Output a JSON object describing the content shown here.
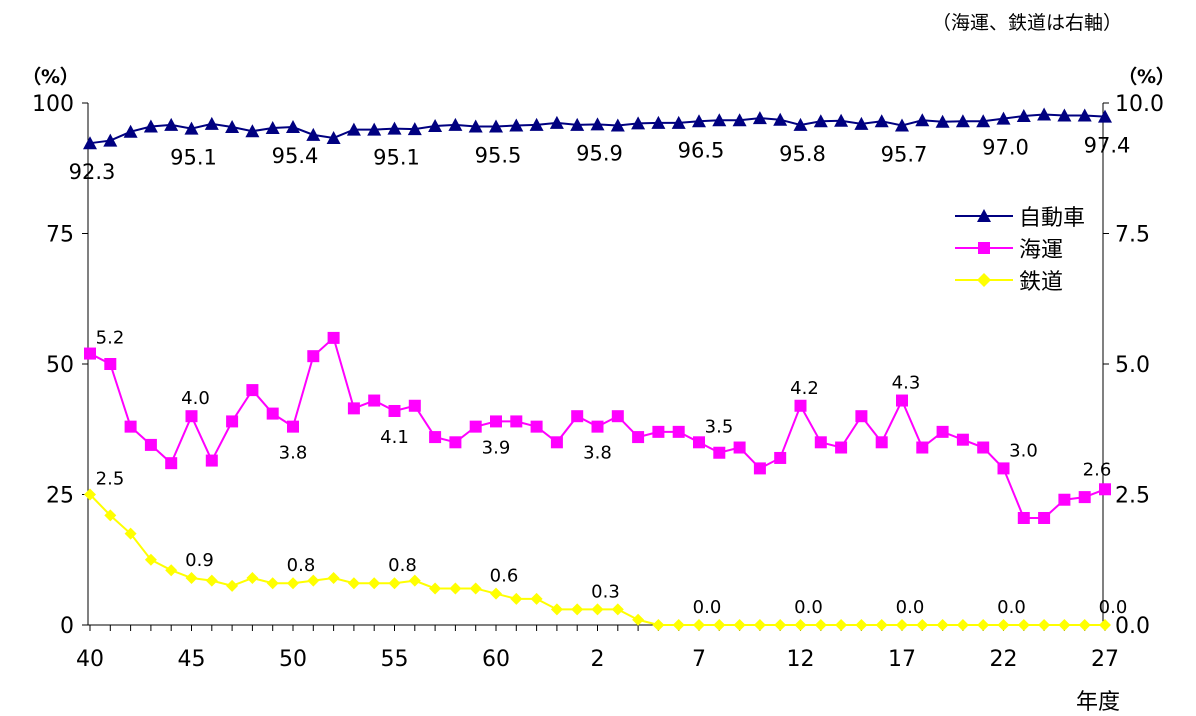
{
  "chart_data": {
    "type": "line",
    "note": "（海運、鉄道は右軸）",
    "ylabel_left": "（%）",
    "ylabel_right": "（%）",
    "xlabel": "年度",
    "ylim_left": [
      0,
      100
    ],
    "ylim_right": [
      0,
      10
    ],
    "left_ticks": [
      "0",
      "25",
      "50",
      "75",
      "100"
    ],
    "right_ticks": [
      "0.0",
      "2.5",
      "5.0",
      "7.5",
      "10.0"
    ],
    "x_tick_labels": [
      "40",
      "45",
      "50",
      "55",
      "60",
      "2",
      "7",
      "12",
      "17",
      "22",
      "27"
    ],
    "x": [
      "40",
      "41",
      "42",
      "43",
      "44",
      "45",
      "46",
      "47",
      "48",
      "49",
      "50",
      "51",
      "52",
      "53",
      "54",
      "55",
      "56",
      "57",
      "58",
      "59",
      "60",
      "61",
      "62",
      "63",
      "元",
      "2",
      "3",
      "4",
      "5",
      "6",
      "7",
      "8",
      "9",
      "10",
      "11",
      "12",
      "13",
      "14",
      "15",
      "16",
      "17",
      "18",
      "19",
      "20",
      "21",
      "22",
      "23",
      "24",
      "25",
      "26",
      "27"
    ],
    "grid": false,
    "legend_position": "right",
    "series": [
      {
        "name": "自動車",
        "axis": "left",
        "color": "#000080",
        "marker": "triangle",
        "values": [
          92.3,
          92.8,
          94.5,
          95.5,
          95.8,
          95.1,
          96.0,
          95.4,
          94.6,
          95.2,
          95.4,
          93.9,
          93.3,
          94.9,
          94.9,
          95.1,
          95.0,
          95.6,
          95.8,
          95.5,
          95.5,
          95.7,
          95.8,
          96.2,
          95.8,
          95.9,
          95.7,
          96.1,
          96.2,
          96.2,
          96.5,
          96.7,
          96.7,
          97.1,
          96.8,
          95.8,
          96.5,
          96.6,
          96.0,
          96.5,
          95.7,
          96.7,
          96.4,
          96.5,
          96.5,
          97.0,
          97.5,
          97.8,
          97.6,
          97.6,
          97.4
        ],
        "labels": {
          "0": "92.3",
          "5": "95.1",
          "10": "95.4",
          "15": "95.1",
          "20": "95.5",
          "25": "95.9",
          "30": "96.5",
          "35": "95.8",
          "40": "95.7",
          "45": "97.0",
          "50": "97.4"
        }
      },
      {
        "name": "海運",
        "axis": "right",
        "color": "#FF00FF",
        "marker": "square",
        "values": [
          5.2,
          5.0,
          3.8,
          3.45,
          3.1,
          4.0,
          3.15,
          3.9,
          4.5,
          4.05,
          3.8,
          5.15,
          5.5,
          4.15,
          4.3,
          4.1,
          4.2,
          3.6,
          3.5,
          3.8,
          3.9,
          3.9,
          3.8,
          3.5,
          4.0,
          3.8,
          4.0,
          3.6,
          3.7,
          3.7,
          3.5,
          3.3,
          3.4,
          3.0,
          3.2,
          4.2,
          3.5,
          3.4,
          4.0,
          3.5,
          4.3,
          3.4,
          3.7,
          3.55,
          3.4,
          3.0,
          2.05,
          2.05,
          2.4,
          2.45,
          2.6
        ],
        "labels": {
          "0": "5.2",
          "5": "4.0",
          "10": "3.8",
          "15": "4.1",
          "20": "3.9",
          "25": "3.8",
          "30": "3.5",
          "35": "4.2",
          "40": "4.3",
          "45": "3.0",
          "50": "2.6"
        }
      },
      {
        "name": "鉄道",
        "axis": "right",
        "color": "#FFFF00",
        "marker": "diamond",
        "values": [
          2.5,
          2.1,
          1.75,
          1.25,
          1.05,
          0.9,
          0.85,
          0.75,
          0.9,
          0.8,
          0.8,
          0.85,
          0.9,
          0.8,
          0.8,
          0.8,
          0.85,
          0.7,
          0.7,
          0.7,
          0.6,
          0.5,
          0.5,
          0.3,
          0.3,
          0.3,
          0.3,
          0.1,
          0.0,
          0.0,
          0.0,
          0.0,
          0.0,
          0.0,
          0.0,
          0.0,
          0.0,
          0.0,
          0.0,
          0.0,
          0.0,
          0.0,
          0.0,
          0.0,
          0.0,
          0.0,
          0.0,
          0.0,
          0.0,
          0.0,
          0.0
        ],
        "labels": {
          "0": "2.5",
          "5": "0.9",
          "10": "0.8",
          "15": "0.8",
          "20": "0.6",
          "25": "0.3",
          "30": "0.0",
          "35": "0.0",
          "40": "0.0",
          "45": "0.0",
          "50": "0.0"
        }
      }
    ]
  }
}
